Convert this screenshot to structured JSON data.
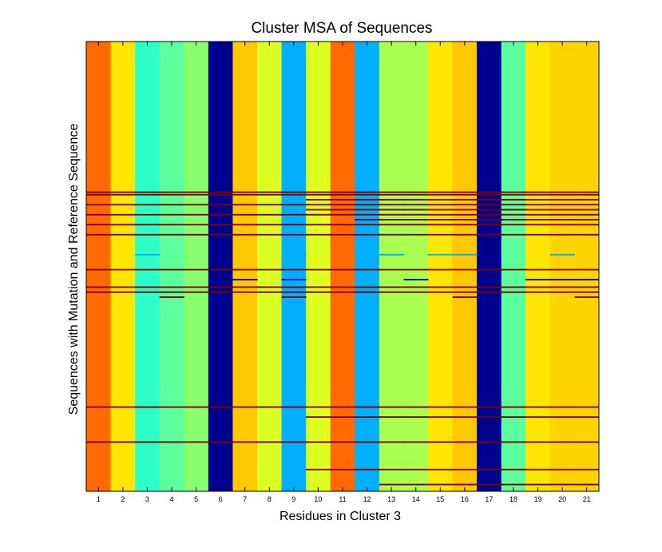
{
  "chart_data": {
    "type": "heatmap",
    "title": "Cluster MSA of Sequences",
    "xlabel": "Residues in Cluster 3",
    "ylabel": "Sequences with Mutation and Reference Sequence",
    "x": [
      "1",
      "2",
      "3",
      "4",
      "5",
      "6",
      "7",
      "8",
      "9",
      "10",
      "11",
      "12",
      "13",
      "14",
      "15",
      "16",
      "17",
      "18",
      "19",
      "20",
      "21"
    ],
    "column_colors": [
      "#ff6a00",
      "#ffe600",
      "#2dffc9",
      "#5cff9d",
      "#88ff6f",
      "#00008f",
      "#ffc800",
      "#d9ff23",
      "#00b0ff",
      "#dfff1f",
      "#ff6a00",
      "#00b0ff",
      "#a8ff4f",
      "#a8ff4f",
      "#ffe600",
      "#ffc800",
      "#00008f",
      "#5cff9d",
      "#ffe600",
      "#ffd400",
      "#ffd400"
    ],
    "row_count": 180,
    "variant_rows": [
      {
        "row": 61,
        "cols": "all",
        "color": "#800000"
      },
      {
        "row": 62,
        "cols": "all",
        "color": "#800000"
      },
      {
        "row": 64,
        "cols": [
          10,
          11,
          12,
          13,
          14,
          15,
          16,
          17,
          18,
          19,
          20,
          21
        ],
        "color": "#800000"
      },
      {
        "row": 66,
        "cols": "all",
        "color": "#800000"
      },
      {
        "row": 68,
        "cols": [
          10,
          11,
          12,
          13,
          14,
          15,
          16,
          17,
          18,
          19,
          20,
          21
        ],
        "color": "#800000"
      },
      {
        "row": 70,
        "cols": "all",
        "color": "#800000"
      },
      {
        "row": 72,
        "cols": [
          12,
          13,
          14,
          15,
          16,
          17,
          18,
          19,
          20,
          21
        ],
        "color": "#800000"
      },
      {
        "row": 74,
        "cols": "all",
        "color": "#800000"
      },
      {
        "row": 78,
        "cols": "all",
        "color": "#800000"
      },
      {
        "row": 86,
        "cols": [
          3,
          9,
          13,
          15,
          16,
          20
        ],
        "color": "#00b0ff"
      },
      {
        "row": 92,
        "cols": "all",
        "color": "#800000"
      },
      {
        "row": 96,
        "cols": [
          7,
          9,
          14,
          19,
          20,
          21
        ],
        "color": "#00008f"
      },
      {
        "row": 99,
        "cols": "all",
        "color": "#800000"
      },
      {
        "row": 101,
        "cols": "all",
        "color": "#800000"
      },
      {
        "row": 103,
        "cols": [
          4,
          9,
          16,
          21
        ],
        "color": "#800000"
      },
      {
        "row": 147,
        "cols": "all",
        "color": "#800000"
      },
      {
        "row": 151,
        "cols": [
          10,
          11,
          12,
          13,
          14,
          15,
          16,
          17,
          18,
          19,
          20,
          21
        ],
        "color": "#800000"
      },
      {
        "row": 161,
        "cols": "all",
        "color": "#800000"
      },
      {
        "row": 172,
        "cols": [
          10,
          11,
          12,
          13,
          14,
          15,
          16,
          17,
          18,
          19,
          20,
          21
        ],
        "color": "#800000"
      },
      {
        "row": 178,
        "cols": [
          13,
          14,
          15,
          16,
          17,
          18,
          19,
          20,
          21
        ],
        "color": "#800000"
      }
    ],
    "grid": false,
    "colormap": "jet"
  }
}
